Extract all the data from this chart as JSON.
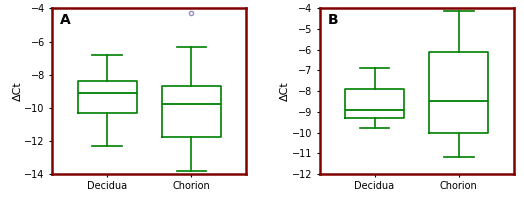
{
  "panel_A": {
    "label": "A",
    "categories": [
      "Decidua",
      "Chorion"
    ],
    "boxes": [
      {
        "q1": -10.3,
        "median": -9.1,
        "q3": -8.4,
        "whislo": -12.3,
        "whishi": -6.8,
        "fliers": []
      },
      {
        "q1": -11.8,
        "median": -9.8,
        "q3": -8.7,
        "whislo": -13.8,
        "whishi": -6.3,
        "fliers": [
          -4.3
        ]
      }
    ],
    "ylim": [
      -14,
      -4
    ],
    "yticks": [
      -14,
      -12,
      -10,
      -8,
      -6,
      -4
    ],
    "ylabel": "ΔCt"
  },
  "panel_B": {
    "label": "B",
    "categories": [
      "Decidua",
      "Chorion"
    ],
    "boxes": [
      {
        "q1": -9.3,
        "median": -8.9,
        "q3": -7.9,
        "whislo": -9.8,
        "whishi": -6.9,
        "fliers": []
      },
      {
        "q1": -10.0,
        "median": -8.5,
        "q3": -6.1,
        "whislo": -11.2,
        "whishi": -4.1,
        "fliers": []
      }
    ],
    "ylim": [
      -12,
      -4
    ],
    "yticks": [
      -12,
      -11,
      -10,
      -9,
      -8,
      -7,
      -6,
      -5,
      -4
    ],
    "ylabel": "ΔCt"
  },
  "box_color": "#008000",
  "median_color": "#008000",
  "whisker_color": "#008000",
  "cap_color": "#008000",
  "flier_color": "#9090bb",
  "frame_color": "#800000",
  "tick_label_fontsize": 7,
  "axis_label_fontsize": 8,
  "panel_label_fontsize": 10
}
